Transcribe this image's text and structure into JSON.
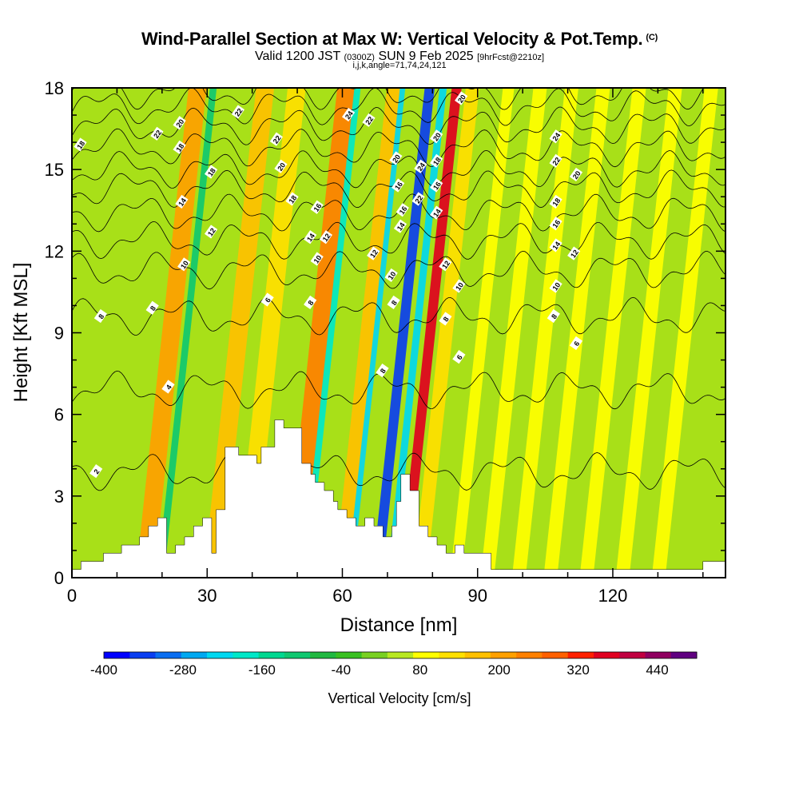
{
  "title": {
    "main": "Wind-Parallel Section at Max W: Vertical Velocity & Pot.Temp.",
    "copyright": "(C)",
    "valid_prefix": "Valid 1200 JST",
    "valid_utc": "(0300Z)",
    "valid_date": "SUN 9 Feb 2025",
    "forecast": "[9hrFcst@2210z]",
    "indices": "i,j,k,angle=71,74,24,121"
  },
  "chart_data": {
    "type": "heatmap",
    "xlabel": "Distance [nm]",
    "ylabel": "Height [Kft MSL]",
    "xlim": [
      0,
      145
    ],
    "ylim": [
      0,
      18
    ],
    "xticks": [
      "0",
      "30",
      "60",
      "90",
      "120"
    ],
    "yticks": [
      "0",
      "3",
      "6",
      "9",
      "12",
      "15",
      "18"
    ],
    "colorbar": {
      "label": "Vertical Velocity [cm/s]",
      "min": -400,
      "max": 500,
      "step": 40,
      "tick_labels": [
        "-400",
        "-280",
        "-160",
        "-40",
        "80",
        "200",
        "320",
        "440"
      ],
      "colors": [
        "#0000ff",
        "#0a3ef0",
        "#0a6ef0",
        "#00a8f0",
        "#00d8f0",
        "#00e8c8",
        "#00d890",
        "#10c870",
        "#20b840",
        "#38c020",
        "#78d020",
        "#b8e820",
        "#ffff00",
        "#ffe000",
        "#ffc000",
        "#ffa000",
        "#ff8000",
        "#ff6000",
        "#ff2000",
        "#e00020",
        "#c00040",
        "#900060",
        "#600080"
      ]
    },
    "terrain_profile": {
      "x": [
        0,
        2,
        2,
        7,
        7,
        11,
        11,
        15,
        15,
        17,
        17,
        19,
        19,
        21,
        21,
        23,
        23,
        25,
        25,
        27,
        27,
        29,
        29,
        31,
        31,
        32,
        32,
        34,
        34,
        37,
        37,
        41,
        41,
        42,
        42,
        45,
        45,
        47,
        47,
        51,
        51,
        53,
        53,
        54,
        54,
        56,
        56,
        58,
        58,
        59,
        59,
        61,
        61,
        63,
        63,
        65,
        65,
        67,
        67,
        69,
        69,
        71,
        71,
        72,
        72,
        73,
        73,
        75,
        75,
        77,
        77,
        79,
        79,
        81,
        81,
        83,
        83,
        85,
        85,
        87,
        87,
        93,
        93,
        95,
        95,
        140,
        140,
        145
      ],
      "y": [
        0.3,
        0.3,
        0.6,
        0.6,
        0.9,
        0.9,
        1.2,
        1.2,
        1.5,
        1.5,
        1.9,
        1.9,
        2.2,
        2.2,
        0.9,
        0.9,
        1.2,
        1.2,
        1.5,
        1.5,
        1.9,
        1.9,
        2.2,
        2.2,
        0.9,
        0.9,
        2.5,
        2.5,
        4.8,
        4.8,
        4.5,
        4.5,
        4.2,
        4.2,
        4.8,
        4.8,
        5.8,
        5.8,
        5.5,
        5.5,
        4.2,
        4.2,
        3.8,
        3.8,
        3.5,
        3.5,
        3.2,
        3.2,
        2.8,
        2.8,
        2.5,
        2.5,
        2.2,
        2.2,
        1.9,
        1.9,
        2.2,
        2.2,
        1.9,
        1.9,
        1.5,
        1.5,
        1.9,
        1.9,
        2.8,
        2.8,
        3.8,
        3.8,
        3.2,
        3.2,
        1.9,
        1.9,
        1.5,
        1.5,
        1.2,
        1.2,
        0.9,
        0.9,
        1.2,
        1.2,
        0.9,
        0.9,
        0.3,
        0.3,
        0.3,
        0.3,
        0.6,
        0.6
      ]
    },
    "wave_bands": [
      {
        "x": 22,
        "w": 4,
        "v": 210
      },
      {
        "x": 25.5,
        "w": 1.5,
        "v": -110
      },
      {
        "x": 37,
        "w": 4,
        "v": 160
      },
      {
        "x": 44,
        "w": 4,
        "v": 130
      },
      {
        "x": 55,
        "w": 4,
        "v": 250
      },
      {
        "x": 57.5,
        "w": 1.4,
        "v": -200
      },
      {
        "x": 66,
        "w": 4,
        "v": 180
      },
      {
        "x": 67.5,
        "w": 1.2,
        "v": -230
      },
      {
        "x": 73.5,
        "w": 2.2,
        "v": -340
      },
      {
        "x": 76.5,
        "w": 1.6,
        "v": -230
      },
      {
        "x": 79.5,
        "w": 2.2,
        "v": 380
      },
      {
        "x": 83,
        "w": 3,
        "v": 140
      },
      {
        "x": 91,
        "w": 2.5,
        "v": 100
      },
      {
        "x": 98,
        "w": 3,
        "v": 90
      },
      {
        "x": 105,
        "w": 3,
        "v": 100
      },
      {
        "x": 112,
        "w": 3,
        "v": 110
      },
      {
        "x": 120,
        "w": 3,
        "v": 90
      },
      {
        "x": 128,
        "w": 3,
        "v": 80
      },
      {
        "x": 136,
        "w": 3,
        "v": 90
      }
    ],
    "theta_contours": [
      {
        "level": "2",
        "y": 3.9
      },
      {
        "level": "4",
        "y": 6.9
      },
      {
        "level": "6",
        "y": 9.6
      },
      {
        "level": "8",
        "y": 11.3
      },
      {
        "level": "10",
        "y": 12.4
      },
      {
        "level": "12",
        "y": 13.4
      },
      {
        "level": "14",
        "y": 14.3
      },
      {
        "level": "16",
        "y": 15.0
      },
      {
        "level": "18",
        "y": 15.8
      },
      {
        "level": "20",
        "y": 16.6
      },
      {
        "level": "22",
        "y": 17.3
      },
      {
        "level": "24",
        "y": 17.9
      }
    ],
    "contour_labels": [
      {
        "t": "18",
        "x": 2,
        "y": 15.9
      },
      {
        "t": "22",
        "x": 19,
        "y": 16.3
      },
      {
        "t": "20",
        "x": 24,
        "y": 16.7
      },
      {
        "t": "18",
        "x": 24,
        "y": 15.8
      },
      {
        "t": "14",
        "x": 24.5,
        "y": 13.8
      },
      {
        "t": "10",
        "x": 25,
        "y": 11.5
      },
      {
        "t": "8",
        "x": 18,
        "y": 9.9
      },
      {
        "t": "8",
        "x": 6.5,
        "y": 9.6
      },
      {
        "t": "4",
        "x": 21.5,
        "y": 7.0
      },
      {
        "t": "2",
        "x": 5.5,
        "y": 3.9
      },
      {
        "t": "18",
        "x": 31,
        "y": 14.9
      },
      {
        "t": "12",
        "x": 31,
        "y": 12.7
      },
      {
        "t": "22",
        "x": 37,
        "y": 17.1
      },
      {
        "t": "22",
        "x": 45.5,
        "y": 16.1
      },
      {
        "t": "20",
        "x": 46.5,
        "y": 15.1
      },
      {
        "t": "18",
        "x": 49,
        "y": 13.9
      },
      {
        "t": "6",
        "x": 43.5,
        "y": 10.2
      },
      {
        "t": "16",
        "x": 54.5,
        "y": 13.6
      },
      {
        "t": "14",
        "x": 53,
        "y": 12.5
      },
      {
        "t": "12",
        "x": 56.5,
        "y": 12.5
      },
      {
        "t": "10",
        "x": 54.5,
        "y": 11.7
      },
      {
        "t": "8",
        "x": 53,
        "y": 10.1
      },
      {
        "t": "24",
        "x": 61.5,
        "y": 17.0
      },
      {
        "t": "22",
        "x": 66,
        "y": 16.8
      },
      {
        "t": "12",
        "x": 67,
        "y": 11.9
      },
      {
        "t": "10",
        "x": 71,
        "y": 11.1
      },
      {
        "t": "8",
        "x": 71.5,
        "y": 10.1
      },
      {
        "t": "8",
        "x": 69,
        "y": 7.6
      },
      {
        "t": "20",
        "x": 72,
        "y": 15.4
      },
      {
        "t": "16",
        "x": 72.5,
        "y": 14.4
      },
      {
        "t": "16",
        "x": 73.5,
        "y": 13.5
      },
      {
        "t": "14",
        "x": 73,
        "y": 12.9
      },
      {
        "t": "22",
        "x": 77,
        "y": 13.9
      },
      {
        "t": "24",
        "x": 77.5,
        "y": 15.1
      },
      {
        "t": "20",
        "x": 81,
        "y": 16.2
      },
      {
        "t": "18",
        "x": 81,
        "y": 15.3
      },
      {
        "t": "16",
        "x": 81,
        "y": 14.4
      },
      {
        "t": "14",
        "x": 81,
        "y": 13.4
      },
      {
        "t": "12",
        "x": 83,
        "y": 11.5
      },
      {
        "t": "10",
        "x": 86,
        "y": 10.7
      },
      {
        "t": "8",
        "x": 83,
        "y": 9.5
      },
      {
        "t": "6",
        "x": 86,
        "y": 8.1
      },
      {
        "t": "20",
        "x": 86.5,
        "y": 17.6
      },
      {
        "t": "24",
        "x": 107.5,
        "y": 16.2
      },
      {
        "t": "22",
        "x": 107.5,
        "y": 15.3
      },
      {
        "t": "20",
        "x": 112,
        "y": 14.8
      },
      {
        "t": "18",
        "x": 107.5,
        "y": 13.8
      },
      {
        "t": "16",
        "x": 107.5,
        "y": 13.0
      },
      {
        "t": "14",
        "x": 107.5,
        "y": 12.2
      },
      {
        "t": "12",
        "x": 111.5,
        "y": 11.9
      },
      {
        "t": "10",
        "x": 107.5,
        "y": 10.7
      },
      {
        "t": "8",
        "x": 107,
        "y": 9.6
      },
      {
        "t": "6",
        "x": 112,
        "y": 8.6
      }
    ]
  }
}
